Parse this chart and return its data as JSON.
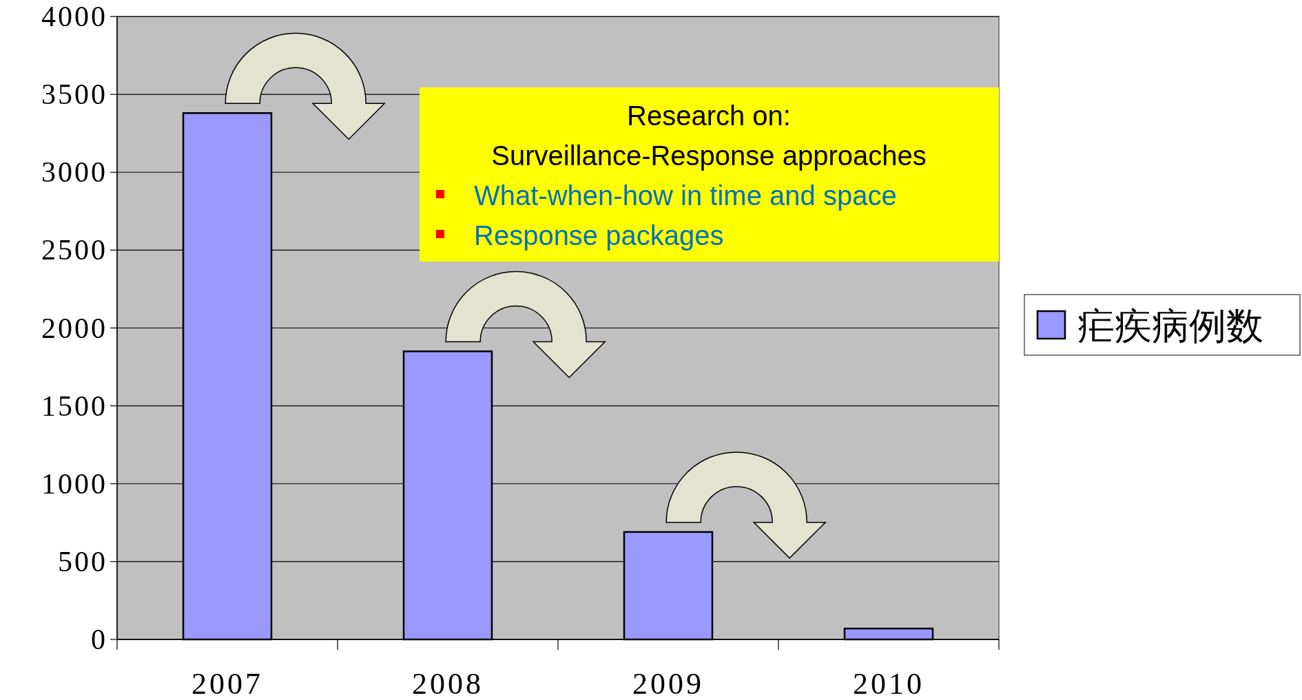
{
  "chart_data": {
    "type": "bar",
    "categories": [
      "2007",
      "2008",
      "2009",
      "2010"
    ],
    "series": [
      {
        "name": "疟疾病例数",
        "color": "#9999ff",
        "values": [
          3380,
          1850,
          690,
          70
        ]
      }
    ],
    "ylim": [
      0,
      4000
    ],
    "yticks": [
      0,
      500,
      1000,
      1500,
      2000,
      2500,
      3000,
      3500,
      4000
    ],
    "grid": "y",
    "legend": "right",
    "annotations": [
      "Research on:",
      "Surveillance-Response approaches",
      "What-when-how in time and space",
      "Response packages"
    ]
  }
}
